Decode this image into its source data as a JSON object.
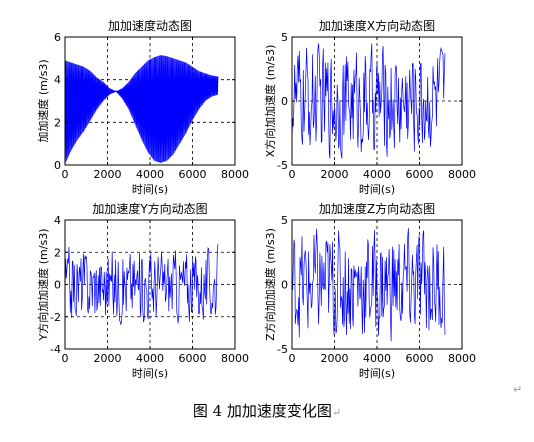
{
  "figure": {
    "caption": "图 4  加加速度变化图",
    "paragraph_mark": "↵"
  },
  "colors": {
    "series": "#0000ff",
    "axes": "#000000",
    "grid": "#000000"
  },
  "chart_data": [
    {
      "type": "line",
      "title": "加加速度动态图",
      "xlabel": "时间(s)",
      "ylabel": "加加速度 (m/s3)",
      "xlim": [
        0,
        8000
      ],
      "ylim": [
        0,
        6
      ],
      "xticks": [
        0,
        2000,
        4000,
        6000,
        8000
      ],
      "yticks": [
        0,
        2,
        4,
        6
      ],
      "grid": true,
      "series": [
        {
          "x": [
            0,
            300,
            600,
            900,
            1200,
            1500,
            1800,
            2100,
            2400,
            2700,
            3000,
            3300,
            3600,
            3900,
            4200,
            4500,
            4800,
            5100,
            5400,
            5700,
            6000,
            6300,
            6600,
            6900,
            7200
          ],
          "y_upper": [
            4.9,
            4.8,
            4.7,
            4.6,
            4.4,
            4.1,
            3.9,
            3.6,
            3.45,
            3.6,
            3.9,
            4.3,
            4.6,
            4.9,
            5.05,
            5.15,
            5.1,
            5.0,
            4.9,
            4.8,
            4.6,
            4.4,
            4.3,
            4.2,
            4.15
          ],
          "y_lower": [
            0.05,
            0.7,
            1.2,
            1.6,
            2.1,
            2.6,
            3.0,
            3.3,
            3.45,
            3.1,
            2.6,
            1.9,
            1.2,
            0.6,
            0.2,
            0.1,
            0.2,
            0.5,
            1.0,
            1.5,
            2.1,
            2.6,
            3.0,
            3.2,
            3.3
          ]
        }
      ]
    },
    {
      "type": "line",
      "title": "加加速度X方向动态图",
      "xlabel": "时间(s)",
      "ylabel": "X方向加加速度 (m/s3)",
      "xlim": [
        0,
        8000
      ],
      "ylim": [
        -5,
        5
      ],
      "xticks": [
        0,
        2000,
        4000,
        6000,
        8000
      ],
      "yticks": [
        -5,
        0,
        5
      ],
      "grid": true,
      "series": [
        {
          "x": [
            0,
            7200
          ],
          "y_range": [
            -4.5,
            4.5
          ]
        }
      ]
    },
    {
      "type": "line",
      "title": "加加速度Y方向动态图",
      "xlabel": "时间(s)",
      "ylabel": "Y方向加加速度 (m/s3)",
      "xlim": [
        0,
        8000
      ],
      "ylim": [
        -4,
        4
      ],
      "xticks": [
        0,
        2000,
        4000,
        6000,
        8000
      ],
      "yticks": [
        -4,
        -2,
        0,
        2,
        4
      ],
      "grid": true,
      "series": [
        {
          "x": [
            0,
            7200
          ],
          "y_range": [
            -2.5,
            2.5
          ]
        }
      ]
    },
    {
      "type": "line",
      "title": "加加速度Z方向动态图",
      "xlabel": "时间(s)",
      "ylabel": "Z方向加加速度 (m/s3)",
      "xlim": [
        0,
        8000
      ],
      "ylim": [
        -5,
        5
      ],
      "xticks": [
        0,
        2000,
        4000,
        6000,
        8000
      ],
      "yticks": [
        -5,
        0,
        5
      ],
      "grid": true,
      "series": [
        {
          "x": [
            0,
            7200
          ],
          "y_range": [
            -4.5,
            4.5
          ]
        }
      ]
    }
  ]
}
